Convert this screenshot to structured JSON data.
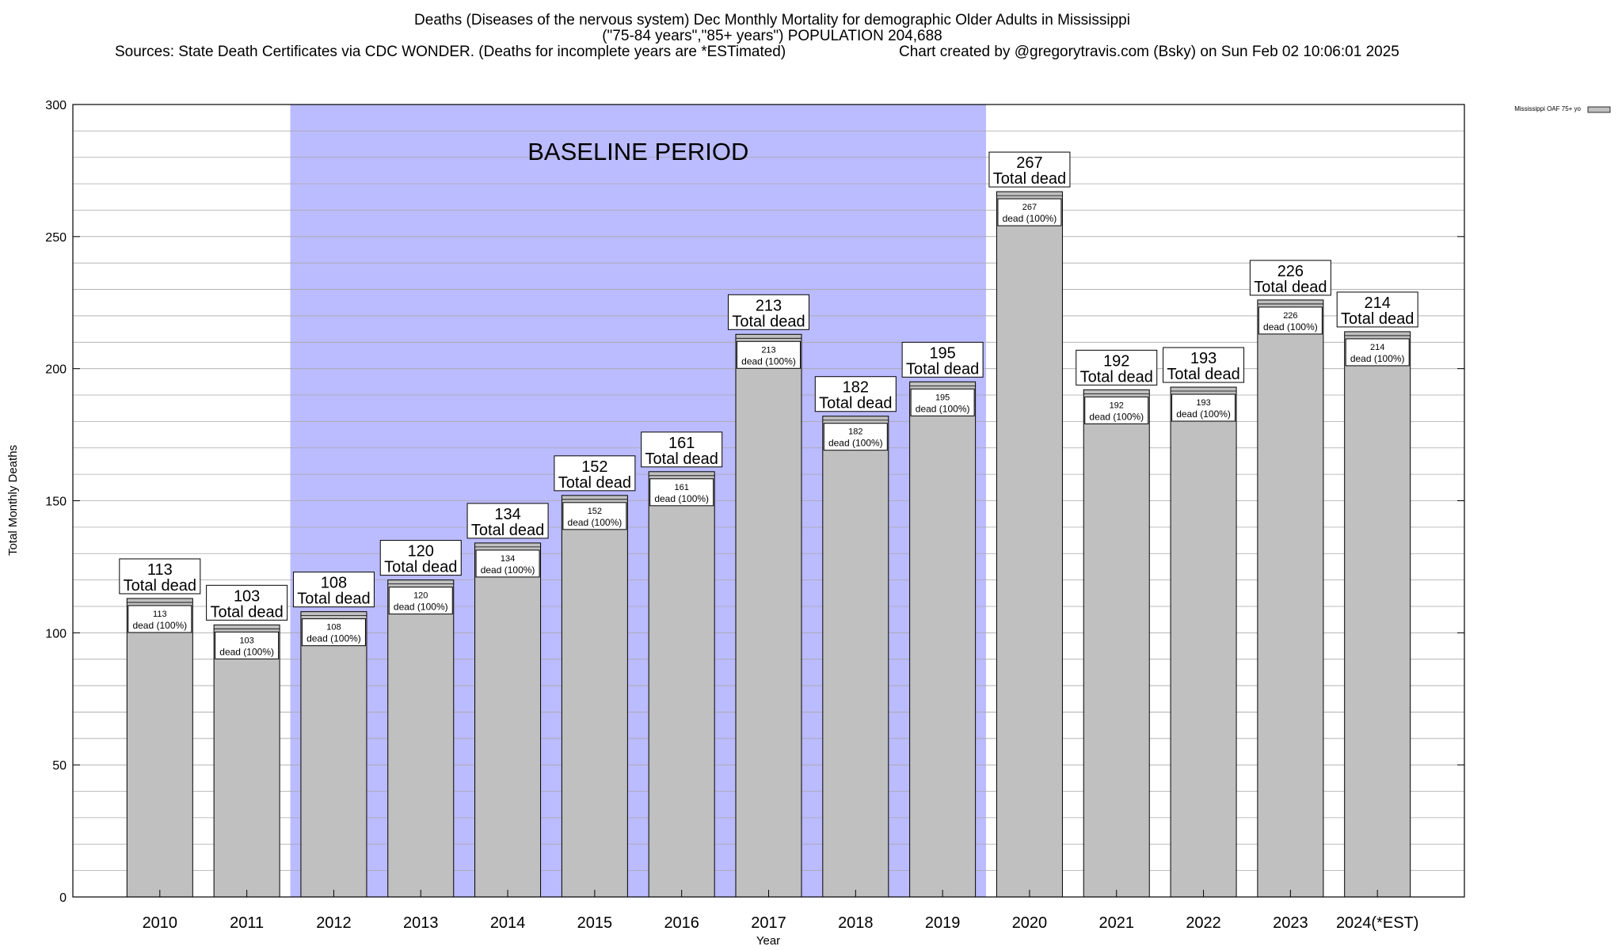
{
  "title": {
    "line1": "Deaths (Diseases of the nervous system) Dec Monthly Mortality for demographic Older Adults in Mississippi",
    "line2": "(\"75-84 years\",\"85+ years\") POPULATION 204,688",
    "line3_left": "Sources: State Death Certificates via CDC WONDER. (Deaths for incomplete years are *ESTimated)",
    "line3_right": "Chart created by @gregorytravis.com (Bsky) on Sun Feb 02 10:06:01 2025"
  },
  "chart_data": {
    "type": "bar",
    "categories": [
      "2010",
      "2011",
      "2012",
      "2013",
      "2014",
      "2015",
      "2016",
      "2017",
      "2018",
      "2019",
      "2020",
      "2021",
      "2022",
      "2023",
      "2024(*EST)"
    ],
    "series": [
      {
        "name": "Mississippi OAF 75+ yo",
        "values": [
          113,
          103,
          108,
          120,
          134,
          152,
          161,
          213,
          182,
          195,
          267,
          192,
          193,
          226,
          214
        ]
      }
    ],
    "xlabel": "Year",
    "ylabel": "Total Monthly Deaths",
    "ylim": [
      0,
      300
    ],
    "yticks": [
      0,
      50,
      100,
      150,
      200,
      250,
      300
    ],
    "grid": true,
    "legend": "top-right",
    "bar_color": "#c0c0c0",
    "total_label_suffix": "Total dead",
    "inner_label_suffix": "dead (100%)",
    "baseline": {
      "label": "BASELINE PERIOD",
      "from": "2012",
      "to": "2019",
      "color": "#bbbbff"
    }
  }
}
